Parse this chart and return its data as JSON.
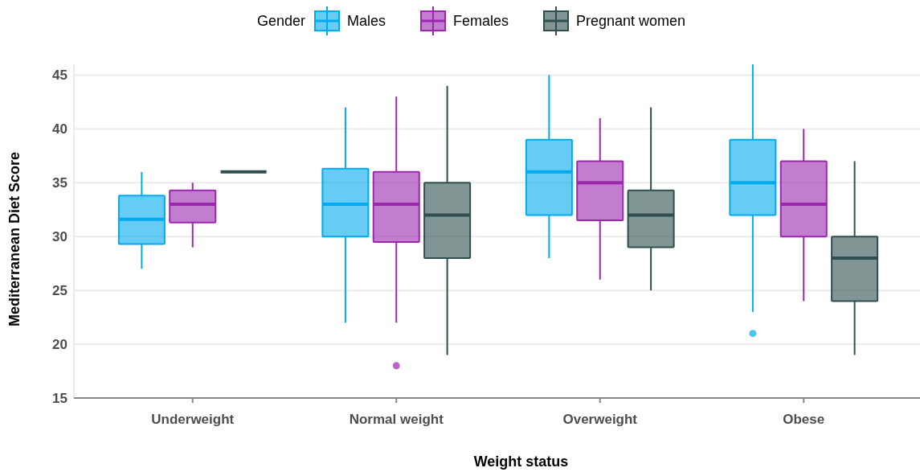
{
  "chart_data": {
    "type": "box",
    "xlabel": "Weight status",
    "ylabel": "Mediterranean Diet Score",
    "legend_title": "Gender",
    "legend": "top",
    "categories": [
      "Underweight",
      "Normal weight",
      "Overweight",
      "Obese"
    ],
    "ylim": [
      15,
      46
    ],
    "yticks": [
      15,
      20,
      25,
      30,
      35,
      40,
      45
    ],
    "grid": "y",
    "series": [
      {
        "name": "Males",
        "color": "#00aaee",
        "boxes": [
          {
            "low": 27,
            "q1": 29.3,
            "median": 31.6,
            "q3": 33.8,
            "high": 36
          },
          {
            "low": 22,
            "q1": 30,
            "median": 33,
            "q3": 36.3,
            "high": 42
          },
          {
            "low": 28,
            "q1": 32,
            "median": 36,
            "q3": 39,
            "high": 45
          },
          {
            "low": 23,
            "q1": 32,
            "median": 35,
            "q3": 39,
            "high": 46,
            "outliers": [
              21
            ]
          }
        ]
      },
      {
        "name": "Females",
        "color": "#9b27af",
        "boxes": [
          {
            "low": 29,
            "q1": 31.3,
            "median": 33,
            "q3": 34.3,
            "high": 35
          },
          {
            "low": 22,
            "q1": 29.5,
            "median": 33,
            "q3": 36,
            "high": 43,
            "outliers": [
              18
            ]
          },
          {
            "low": 26,
            "q1": 31.5,
            "median": 35,
            "q3": 37,
            "high": 41
          },
          {
            "low": 24,
            "q1": 30,
            "median": 33,
            "q3": 37,
            "high": 40
          }
        ]
      },
      {
        "name": "Pregnant women",
        "color": "#2f4f4f",
        "boxes": [
          {
            "low": 36,
            "q1": 36,
            "median": 36,
            "q3": 36,
            "high": 36
          },
          {
            "low": 19,
            "q1": 28,
            "median": 32,
            "q3": 35,
            "high": 44
          },
          {
            "low": 25,
            "q1": 29,
            "median": 32,
            "q3": 34.3,
            "high": 42
          },
          {
            "low": 19,
            "q1": 24,
            "median": 28,
            "q3": 30,
            "high": 37
          }
        ]
      }
    ]
  }
}
